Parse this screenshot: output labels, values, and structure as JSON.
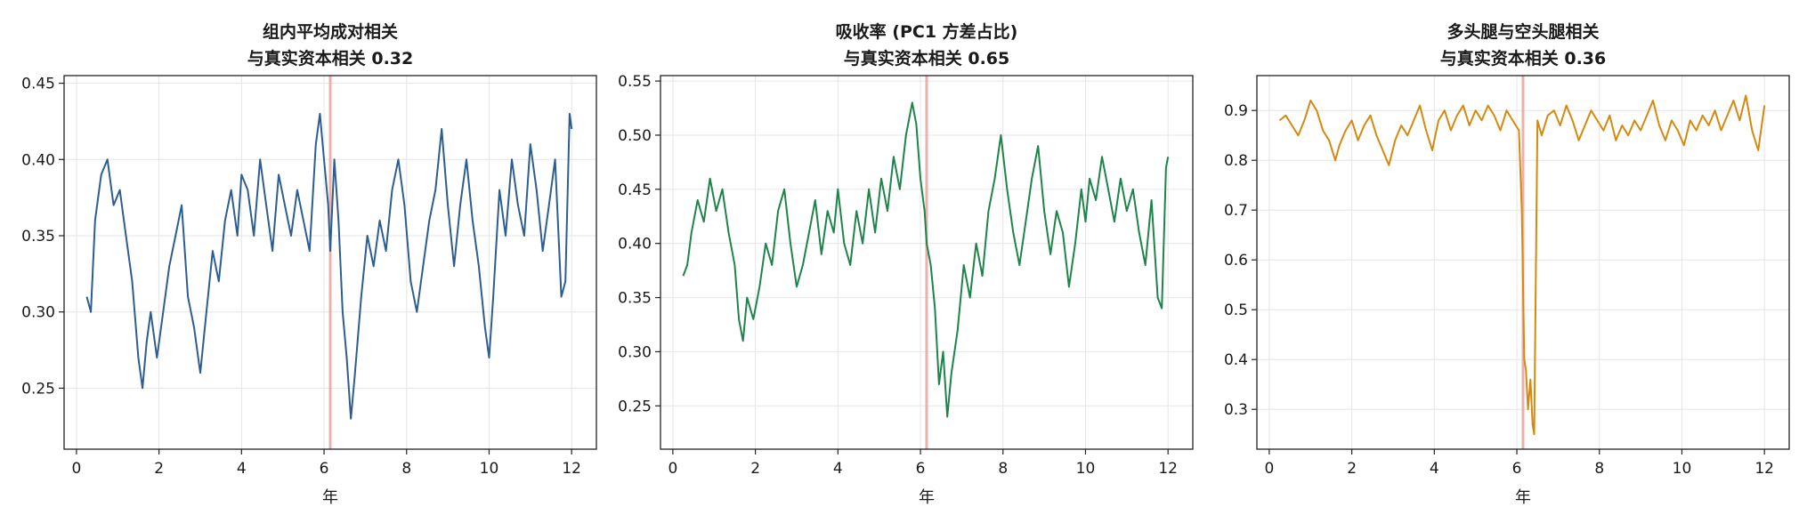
{
  "accent_colors": {
    "series_1": "#2e5d91",
    "series_2": "#1e8449",
    "series_3": "#d68910",
    "marker": "#e8a59e"
  },
  "chart_data": [
    {
      "type": "line",
      "title": [
        "组内平均成对相关",
        "与真实资本相关 0.32"
      ],
      "xlabel": "年",
      "ylabel": "",
      "xlim": [
        -0.3,
        12.6
      ],
      "ylim": [
        0.21,
        0.455
      ],
      "xticks": [
        0,
        2,
        4,
        6,
        8,
        10,
        12
      ],
      "xtick_labels": [
        "0",
        "2",
        "4",
        "6",
        "8",
        "10",
        "12"
      ],
      "yticks": [
        0.25,
        0.3,
        0.35,
        0.4,
        0.45
      ],
      "ytick_labels": [
        "0.25",
        "0.30",
        "0.35",
        "0.40",
        "0.45"
      ],
      "grid": true,
      "marker_x": 6.15,
      "series": [
        {
          "color": "#2e5d91",
          "x": [
            0.25,
            0.35,
            0.45,
            0.6,
            0.75,
            0.9,
            1.05,
            1.2,
            1.35,
            1.5,
            1.6,
            1.7,
            1.8,
            1.95,
            2.1,
            2.25,
            2.4,
            2.55,
            2.7,
            2.85,
            3.0,
            3.15,
            3.3,
            3.45,
            3.6,
            3.75,
            3.9,
            4.0,
            4.15,
            4.3,
            4.45,
            4.6,
            4.75,
            4.9,
            5.05,
            5.2,
            5.35,
            5.5,
            5.65,
            5.8,
            5.9,
            6.0,
            6.1,
            6.15,
            6.25,
            6.35,
            6.45,
            6.55,
            6.65,
            6.75,
            6.9,
            7.05,
            7.2,
            7.35,
            7.5,
            7.65,
            7.8,
            7.95,
            8.1,
            8.25,
            8.4,
            8.55,
            8.7,
            8.85,
            9.0,
            9.15,
            9.3,
            9.45,
            9.6,
            9.75,
            9.9,
            10.0,
            10.1,
            10.25,
            10.4,
            10.55,
            10.7,
            10.85,
            11.0,
            11.15,
            11.3,
            11.45,
            11.6,
            11.75,
            11.85,
            11.95,
            12.0
          ],
          "values": [
            0.31,
            0.3,
            0.36,
            0.39,
            0.4,
            0.37,
            0.38,
            0.35,
            0.32,
            0.27,
            0.25,
            0.28,
            0.3,
            0.27,
            0.3,
            0.33,
            0.35,
            0.37,
            0.31,
            0.29,
            0.26,
            0.3,
            0.34,
            0.32,
            0.36,
            0.38,
            0.35,
            0.39,
            0.38,
            0.35,
            0.4,
            0.37,
            0.34,
            0.39,
            0.37,
            0.35,
            0.38,
            0.36,
            0.34,
            0.41,
            0.43,
            0.4,
            0.37,
            0.34,
            0.4,
            0.36,
            0.3,
            0.27,
            0.23,
            0.26,
            0.31,
            0.35,
            0.33,
            0.36,
            0.34,
            0.38,
            0.4,
            0.37,
            0.32,
            0.3,
            0.33,
            0.36,
            0.38,
            0.42,
            0.37,
            0.33,
            0.37,
            0.4,
            0.36,
            0.33,
            0.29,
            0.27,
            0.31,
            0.38,
            0.35,
            0.4,
            0.37,
            0.35,
            0.41,
            0.38,
            0.34,
            0.37,
            0.4,
            0.31,
            0.32,
            0.43,
            0.42
          ]
        }
      ]
    },
    {
      "type": "line",
      "title": [
        "吸收率 (PC1 方差占比)",
        "与真实资本相关 0.65"
      ],
      "xlabel": "年",
      "ylabel": "",
      "xlim": [
        -0.3,
        12.6
      ],
      "ylim": [
        0.21,
        0.555
      ],
      "xticks": [
        0,
        2,
        4,
        6,
        8,
        10,
        12
      ],
      "xtick_labels": [
        "0",
        "2",
        "4",
        "6",
        "8",
        "10",
        "12"
      ],
      "yticks": [
        0.25,
        0.3,
        0.35,
        0.4,
        0.45,
        0.5,
        0.55
      ],
      "ytick_labels": [
        "0.25",
        "0.30",
        "0.35",
        "0.40",
        "0.45",
        "0.50",
        "0.55"
      ],
      "grid": true,
      "marker_x": 6.15,
      "series": [
        {
          "color": "#1e8449",
          "x": [
            0.25,
            0.35,
            0.45,
            0.6,
            0.75,
            0.9,
            1.05,
            1.2,
            1.35,
            1.5,
            1.6,
            1.7,
            1.8,
            1.95,
            2.1,
            2.25,
            2.4,
            2.55,
            2.7,
            2.85,
            3.0,
            3.15,
            3.3,
            3.45,
            3.6,
            3.75,
            3.9,
            4.0,
            4.15,
            4.3,
            4.45,
            4.6,
            4.75,
            4.9,
            5.05,
            5.2,
            5.35,
            5.5,
            5.65,
            5.8,
            5.9,
            6.0,
            6.1,
            6.15,
            6.25,
            6.35,
            6.45,
            6.55,
            6.65,
            6.75,
            6.9,
            7.05,
            7.2,
            7.35,
            7.5,
            7.65,
            7.8,
            7.95,
            8.1,
            8.25,
            8.4,
            8.55,
            8.7,
            8.85,
            9.0,
            9.15,
            9.3,
            9.45,
            9.6,
            9.75,
            9.9,
            10.0,
            10.1,
            10.25,
            10.4,
            10.55,
            10.7,
            10.85,
            11.0,
            11.15,
            11.3,
            11.45,
            11.6,
            11.75,
            11.85,
            11.95,
            12.0
          ],
          "values": [
            0.37,
            0.38,
            0.41,
            0.44,
            0.42,
            0.46,
            0.43,
            0.45,
            0.41,
            0.38,
            0.33,
            0.31,
            0.35,
            0.33,
            0.36,
            0.4,
            0.38,
            0.43,
            0.45,
            0.4,
            0.36,
            0.38,
            0.41,
            0.44,
            0.39,
            0.43,
            0.41,
            0.45,
            0.4,
            0.38,
            0.43,
            0.4,
            0.45,
            0.41,
            0.46,
            0.43,
            0.48,
            0.45,
            0.5,
            0.53,
            0.51,
            0.46,
            0.43,
            0.4,
            0.38,
            0.34,
            0.27,
            0.3,
            0.24,
            0.28,
            0.32,
            0.38,
            0.35,
            0.4,
            0.37,
            0.43,
            0.46,
            0.5,
            0.45,
            0.41,
            0.38,
            0.42,
            0.46,
            0.49,
            0.43,
            0.39,
            0.43,
            0.41,
            0.36,
            0.4,
            0.45,
            0.42,
            0.46,
            0.44,
            0.48,
            0.45,
            0.42,
            0.46,
            0.43,
            0.45,
            0.41,
            0.38,
            0.44,
            0.35,
            0.34,
            0.47,
            0.48
          ]
        }
      ]
    },
    {
      "type": "line",
      "title": [
        "多头腿与空头腿相关",
        "与真实资本相关 0.36"
      ],
      "xlabel": "年",
      "ylabel": "",
      "xlim": [
        -0.3,
        12.6
      ],
      "ylim": [
        0.22,
        0.97
      ],
      "xticks": [
        0,
        2,
        4,
        6,
        8,
        10,
        12
      ],
      "xtick_labels": [
        "0",
        "2",
        "4",
        "6",
        "8",
        "10",
        "12"
      ],
      "yticks": [
        0.3,
        0.4,
        0.5,
        0.6,
        0.7,
        0.8,
        0.9
      ],
      "ytick_labels": [
        "0.3",
        "0.4",
        "0.5",
        "0.6",
        "0.7",
        "0.8",
        "0.9"
      ],
      "grid": true,
      "marker_x": 6.15,
      "series": [
        {
          "color": "#d68910",
          "x": [
            0.25,
            0.4,
            0.55,
            0.7,
            0.85,
            1.0,
            1.15,
            1.3,
            1.45,
            1.6,
            1.7,
            1.85,
            2.0,
            2.15,
            2.3,
            2.45,
            2.6,
            2.75,
            2.9,
            3.05,
            3.2,
            3.35,
            3.5,
            3.65,
            3.8,
            3.95,
            4.1,
            4.25,
            4.4,
            4.55,
            4.7,
            4.85,
            5.0,
            5.15,
            5.3,
            5.45,
            5.6,
            5.75,
            5.9,
            6.05,
            6.12,
            6.18,
            6.22,
            6.27,
            6.33,
            6.38,
            6.42,
            6.5,
            6.6,
            6.75,
            6.9,
            7.05,
            7.2,
            7.35,
            7.5,
            7.65,
            7.8,
            7.95,
            8.1,
            8.25,
            8.4,
            8.55,
            8.7,
            8.85,
            9.0,
            9.15,
            9.3,
            9.45,
            9.6,
            9.75,
            9.9,
            10.05,
            10.2,
            10.35,
            10.5,
            10.65,
            10.8,
            10.95,
            11.1,
            11.25,
            11.4,
            11.55,
            11.7,
            11.85,
            12.0
          ],
          "values": [
            0.88,
            0.89,
            0.87,
            0.85,
            0.88,
            0.92,
            0.9,
            0.86,
            0.84,
            0.8,
            0.83,
            0.86,
            0.88,
            0.84,
            0.87,
            0.89,
            0.85,
            0.82,
            0.79,
            0.84,
            0.87,
            0.85,
            0.88,
            0.91,
            0.86,
            0.82,
            0.88,
            0.9,
            0.86,
            0.89,
            0.91,
            0.87,
            0.9,
            0.88,
            0.91,
            0.89,
            0.86,
            0.9,
            0.88,
            0.86,
            0.7,
            0.4,
            0.38,
            0.3,
            0.36,
            0.27,
            0.25,
            0.88,
            0.85,
            0.89,
            0.9,
            0.87,
            0.91,
            0.88,
            0.84,
            0.87,
            0.9,
            0.88,
            0.86,
            0.89,
            0.84,
            0.87,
            0.85,
            0.88,
            0.86,
            0.89,
            0.92,
            0.87,
            0.84,
            0.88,
            0.86,
            0.83,
            0.88,
            0.86,
            0.89,
            0.87,
            0.9,
            0.86,
            0.89,
            0.92,
            0.88,
            0.93,
            0.86,
            0.82,
            0.91
          ]
        }
      ]
    }
  ]
}
